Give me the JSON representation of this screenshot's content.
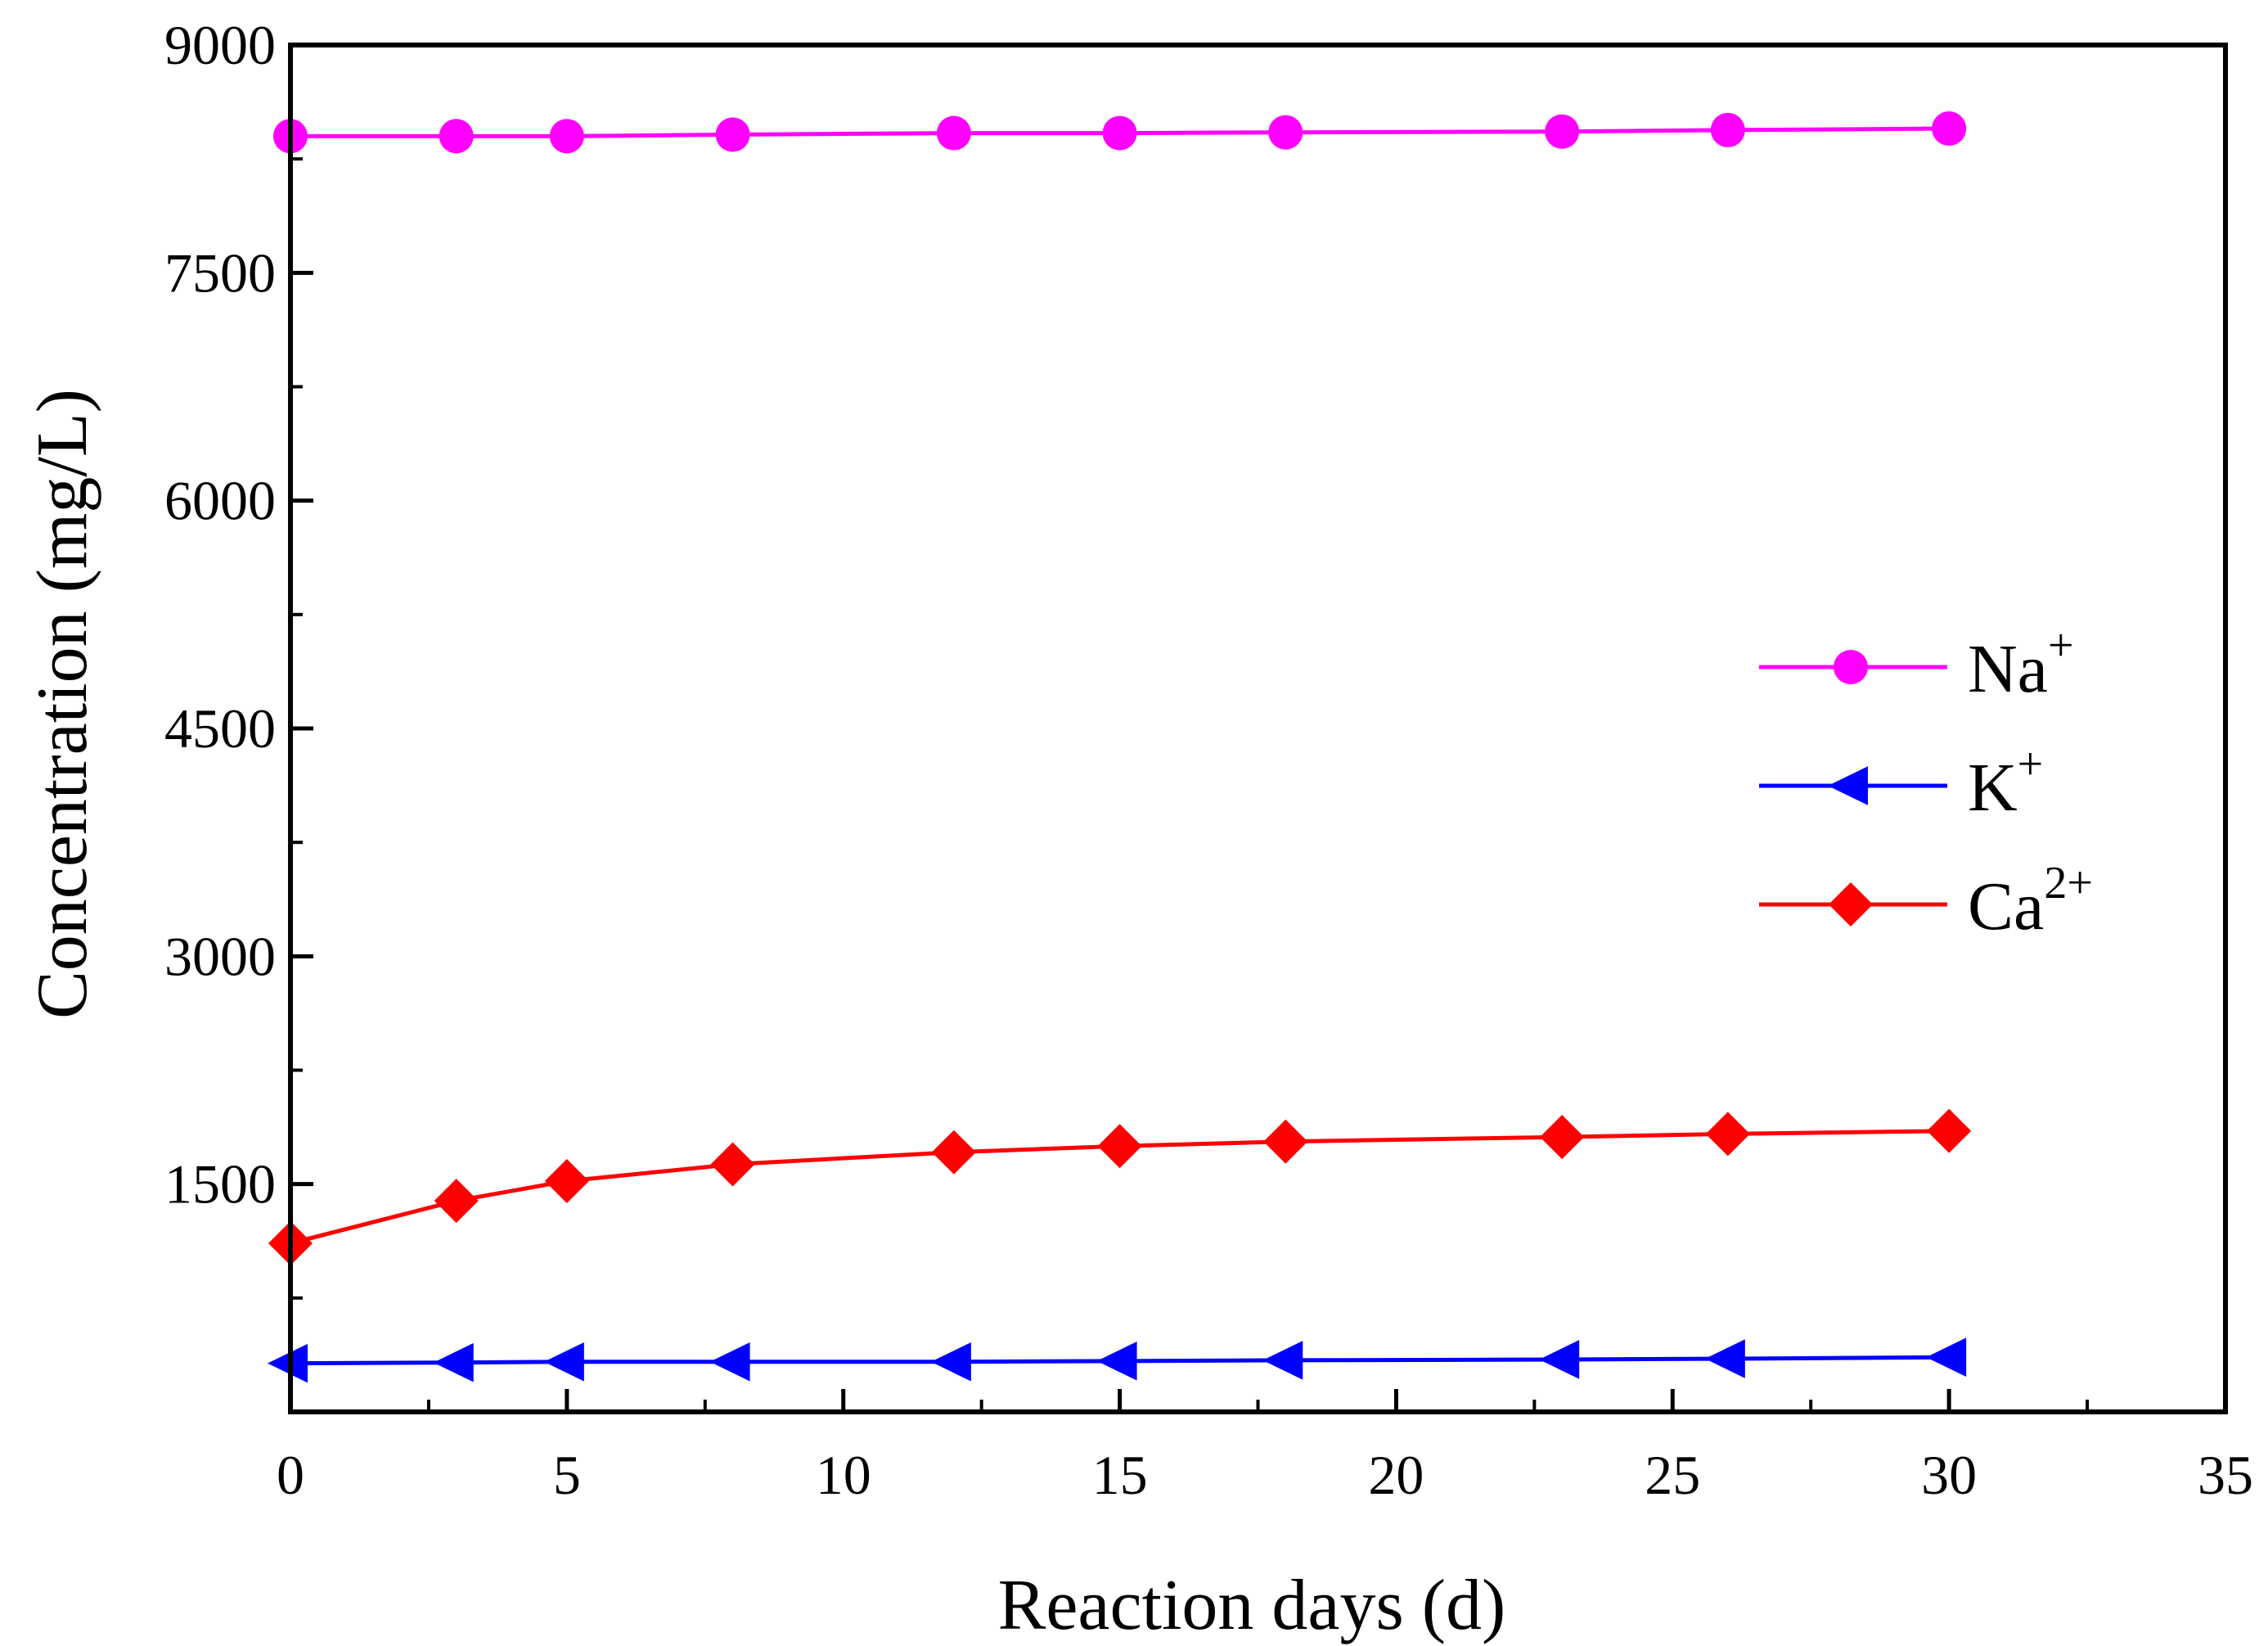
{
  "chart_data": {
    "type": "line",
    "title": "",
    "xlabel": "Reaction days (d)",
    "ylabel": "Concentration (mg/L)",
    "xlim": [
      0,
      35
    ],
    "ylim": [
      0,
      9000
    ],
    "x_ticks": [
      0,
      5,
      10,
      15,
      20,
      25,
      30,
      35
    ],
    "x_tick_labels": [
      "0",
      "5",
      "10",
      "15",
      "20",
      "25",
      "30",
      "35"
    ],
    "y_ticks": [
      1500,
      3000,
      4500,
      6000,
      7500,
      9000
    ],
    "y_tick_labels": [
      "1500",
      "3000",
      "4500",
      "6000",
      "7500",
      "9000"
    ],
    "grid": false,
    "legend_position": "right",
    "x": [
      0,
      3,
      5,
      8,
      12,
      15,
      18,
      23,
      26,
      30
    ],
    "series": [
      {
        "name": "Na+",
        "label_base": "Na",
        "label_sup": "+",
        "color": "#ff00ff",
        "marker": "circle",
        "values": [
          8400,
          8400,
          8400,
          8410,
          8420,
          8420,
          8425,
          8430,
          8440,
          8450
        ]
      },
      {
        "name": "K+",
        "label_base": "K",
        "label_sup": "+",
        "color": "#0000ff",
        "marker": "triangle-left",
        "values": [
          320,
          325,
          330,
          330,
          330,
          335,
          340,
          345,
          350,
          360
        ]
      },
      {
        "name": "Ca2+",
        "label_base": "Ca",
        "label_sup": "2+",
        "color": "#ff0000",
        "marker": "diamond",
        "values": [
          1110,
          1390,
          1520,
          1630,
          1710,
          1750,
          1780,
          1810,
          1830,
          1850
        ]
      }
    ]
  }
}
